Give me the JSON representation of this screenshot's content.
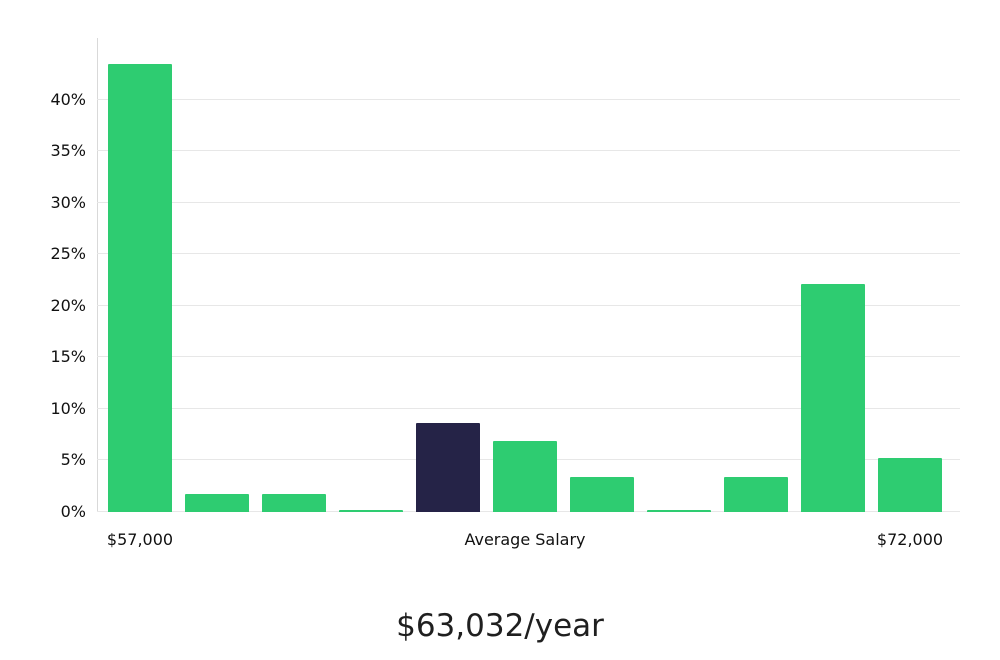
{
  "chart_data": {
    "type": "bar",
    "title": "$63,032/year",
    "ylabel": "",
    "xlabel": "",
    "ylim": [
      0,
      46
    ],
    "grid": true,
    "legend": "none",
    "values": [
      43.5,
      1.7,
      1.7,
      0.2,
      8.6,
      6.9,
      3.4,
      0.2,
      3.4,
      22.1,
      5.2
    ],
    "highlight_index": 4,
    "bar_color": "#2ecc71",
    "highlight_color": "#252347",
    "y_tick_values": [
      0,
      5,
      10,
      15,
      20,
      25,
      30,
      35,
      40
    ],
    "y_tick_labels": [
      "0%",
      "5%",
      "10%",
      "15%",
      "20%",
      "25%",
      "30%",
      "35%",
      "40%"
    ],
    "x_labels": [
      {
        "text": "$57,000",
        "bar_index": 0
      },
      {
        "text": "Average Salary",
        "bar_index": 5
      },
      {
        "text": "$72,000",
        "bar_index": 10
      }
    ]
  }
}
